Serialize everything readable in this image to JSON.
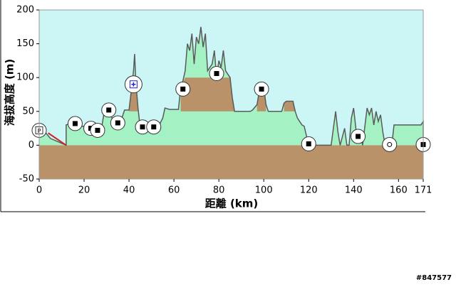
{
  "chart_data": {
    "type": "elevation",
    "y_label": "海拔高度 (m)",
    "x_label": "距離 (km)",
    "watermark": "#847577",
    "xlim": [
      0,
      171
    ],
    "ylim": [
      -50,
      200
    ],
    "xticks": [
      0,
      20,
      40,
      60,
      80,
      100,
      120,
      140,
      160,
      171
    ],
    "yticks": [
      -50,
      0,
      50,
      100,
      150,
      200
    ],
    "background": "#ccf6f6",
    "ground_color": "#b9926a",
    "terrain": {
      "color": "#5a5a5a",
      "fill": "#a4f2c4",
      "x": [
        0,
        3,
        5,
        12,
        12,
        14,
        16,
        20,
        24,
        28,
        29,
        31,
        33,
        36,
        37,
        38,
        40,
        41,
        42,
        42.5,
        43,
        44,
        45,
        47,
        50,
        53,
        55,
        56,
        58,
        62,
        63,
        64,
        65,
        66,
        67,
        68,
        69,
        70,
        71,
        72,
        73,
        74,
        75,
        77,
        78,
        79,
        80,
        81,
        82,
        83,
        84,
        85,
        86,
        87,
        94,
        95,
        97,
        98,
        99,
        100,
        101,
        102,
        108,
        109,
        110,
        113,
        114,
        115,
        117,
        118,
        120,
        130,
        131,
        132,
        133,
        134,
        136,
        137,
        138,
        139,
        140,
        141,
        142,
        143,
        144,
        146,
        147,
        148,
        149,
        150,
        151,
        152,
        153,
        154,
        157,
        158,
        170,
        171,
        171
      ],
      "values": [
        20,
        18,
        10,
        0,
        30,
        32,
        28,
        28,
        25,
        30,
        50,
        52,
        35,
        33,
        42,
        52,
        52,
        80,
        110,
        135,
        95,
        55,
        25,
        28,
        27,
        27,
        40,
        55,
        53,
        53,
        85,
        95,
        110,
        150,
        140,
        165,
        120,
        160,
        150,
        175,
        145,
        165,
        110,
        120,
        140,
        100,
        125,
        115,
        140,
        110,
        105,
        100,
        70,
        50,
        50,
        52,
        60,
        80,
        88,
        85,
        60,
        50,
        50,
        62,
        65,
        65,
        50,
        40,
        30,
        28,
        0,
        0,
        25,
        50,
        20,
        0,
        25,
        0,
        0,
        40,
        55,
        25,
        10,
        20,
        0,
        55,
        45,
        55,
        30,
        50,
        35,
        45,
        20,
        0,
        0,
        30,
        30,
        35,
        0
      ]
    },
    "regions": [
      {
        "x": [
          40,
          41,
          42,
          43,
          44,
          44
        ],
        "values": [
          50,
          80,
          100,
          95,
          55,
          50
        ]
      },
      {
        "x": [
          63,
          63,
          65,
          85,
          86,
          87
        ],
        "values": [
          50,
          85,
          100,
          100,
          70,
          50
        ]
      },
      {
        "x": [
          97,
          97,
          98,
          100,
          101,
          101
        ],
        "values": [
          50,
          60,
          80,
          85,
          60,
          50
        ]
      },
      {
        "x": [
          109,
          109,
          110,
          113,
          114
        ],
        "values": [
          50,
          62,
          65,
          65,
          50
        ]
      }
    ],
    "track": {
      "color": "#cc2222",
      "x": [
        4,
        12,
        null,
        20,
        24
      ],
      "values": [
        18,
        0,
        null,
        29,
        27
      ]
    },
    "stations": {
      "x": [
        0,
        16,
        23,
        26,
        31,
        35,
        42,
        46,
        51,
        64,
        79,
        99,
        120,
        142,
        156,
        171
      ],
      "values": [
        22,
        32,
        25,
        22,
        52,
        33,
        90,
        27,
        27,
        83,
        106,
        83,
        2,
        13,
        1,
        1
      ],
      "kinds": [
        "P",
        "square",
        "square",
        "square",
        "square",
        "square",
        "plus",
        "square",
        "square",
        "square",
        "square",
        "square",
        "square",
        "square",
        "dot",
        "square"
      ]
    }
  }
}
